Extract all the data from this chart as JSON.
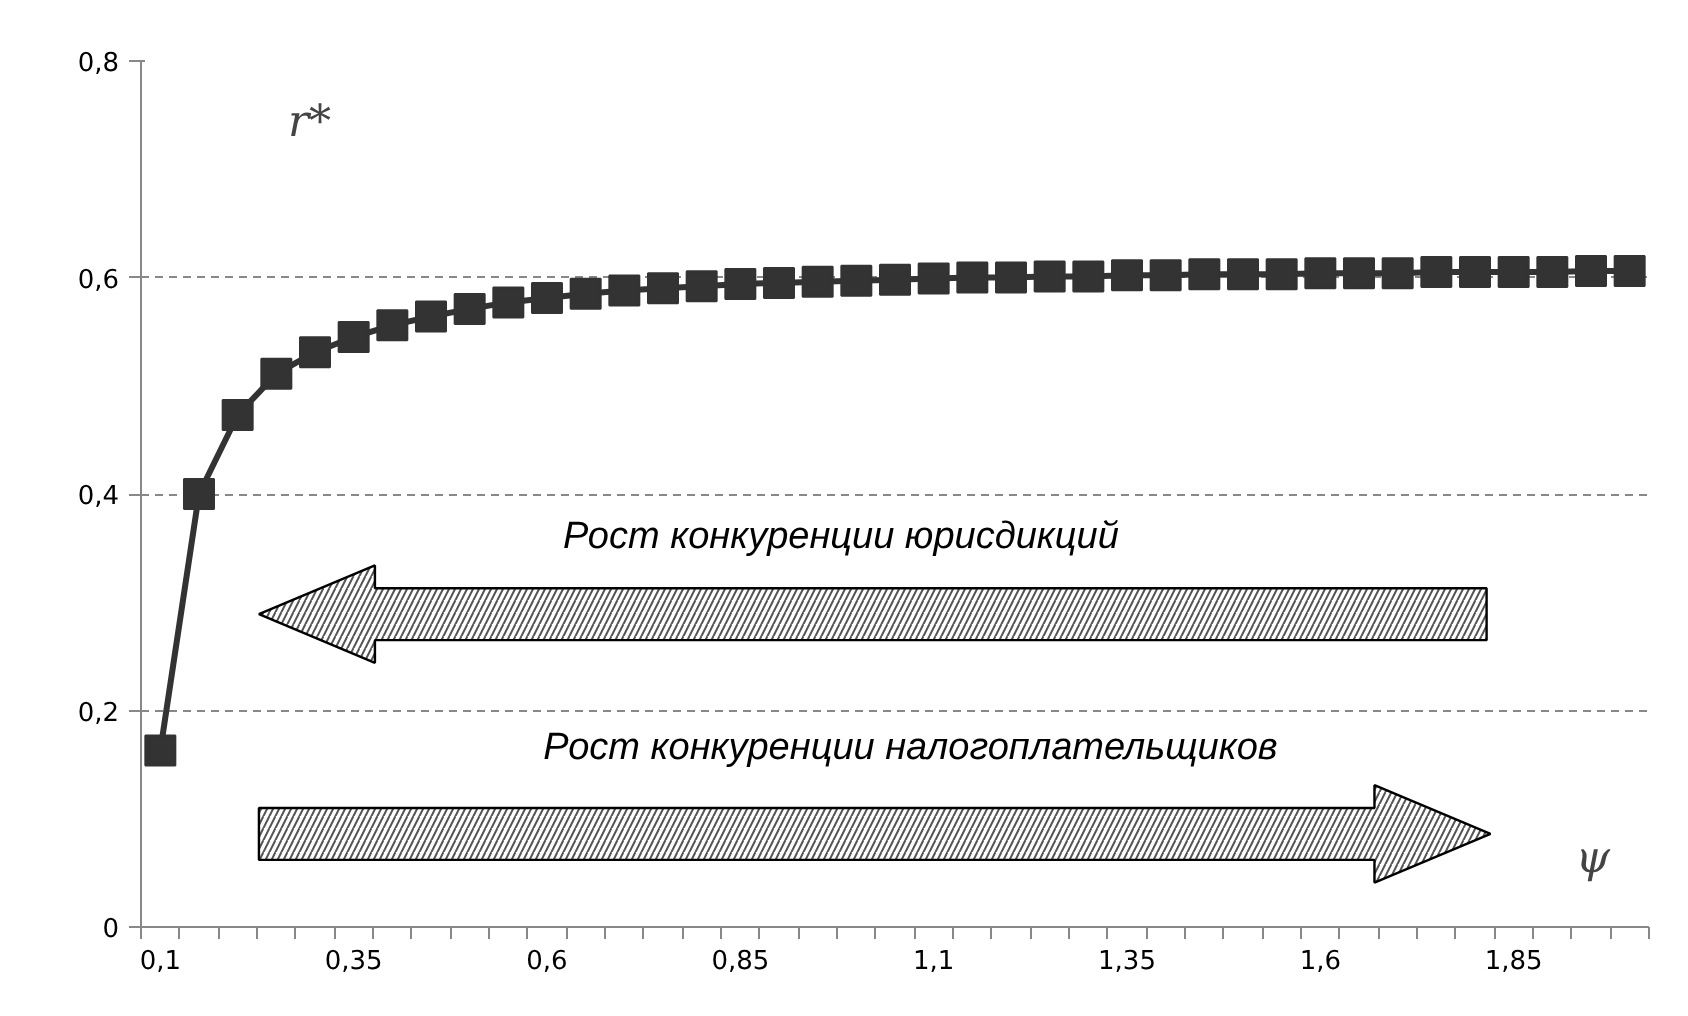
{
  "chart_data": {
    "type": "line",
    "xlabel": "ψ",
    "ylabel": "r*",
    "categories": [
      "0,1",
      null,
      null,
      null,
      null,
      "0,35",
      null,
      null,
      null,
      null,
      "0,6",
      null,
      null,
      null,
      null,
      "0,85",
      null,
      null,
      null,
      null,
      "1,1",
      null,
      null,
      null,
      null,
      "1,35",
      null,
      null,
      null,
      null,
      "1,6",
      null,
      null,
      null,
      null,
      "1,85",
      null,
      null,
      null
    ],
    "series": [
      {
        "color": "#333333",
        "values": [
          0.163,
          0.4,
          0.473,
          0.511,
          0.531,
          0.545,
          0.556,
          0.564,
          0.571,
          0.577,
          0.581,
          0.585,
          0.588,
          0.59,
          0.592,
          0.594,
          0.595,
          0.596,
          0.597,
          0.598,
          0.599,
          0.6,
          0.6,
          0.601,
          0.601,
          0.602,
          0.602,
          0.603,
          0.603,
          0.603,
          0.604,
          0.604,
          0.604,
          0.605,
          0.605,
          0.605,
          0.605,
          0.606,
          0.606
        ]
      }
    ],
    "ylim": [
      0,
      0.8
    ],
    "yticks": [
      0,
      {
        "value": 0.2,
        "label": "0,2"
      },
      {
        "value": 0.4,
        "label": "0,4"
      },
      {
        "value": 0.6,
        "label": "0,6"
      },
      {
        "value": 0.8,
        "label": "0,8"
      }
    ],
    "grid": "y",
    "marker": "square",
    "line_style": "solid",
    "annotations": [
      "Рост конкуренции юрисдикций",
      "Рост конкуренции налогоплательщиков"
    ]
  }
}
